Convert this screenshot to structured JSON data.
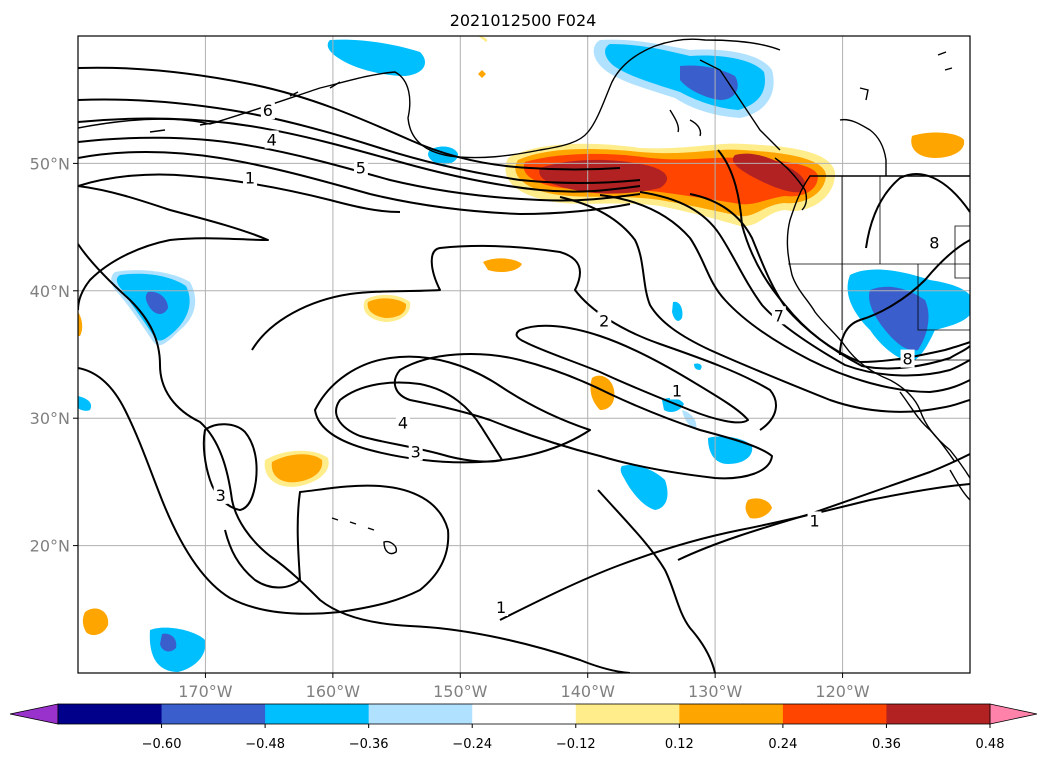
{
  "title": "2021012500 F024",
  "map": {
    "lon_range": [
      -180,
      -110
    ],
    "lat_range": [
      10,
      60
    ],
    "lon_ticks": [
      {
        "lon": -170,
        "label": "170°W"
      },
      {
        "lon": -160,
        "label": "160°W"
      },
      {
        "lon": -150,
        "label": "150°W"
      },
      {
        "lon": -140,
        "label": "140°W"
      },
      {
        "lon": -130,
        "label": "130°W"
      },
      {
        "lon": -120,
        "label": "120°W"
      }
    ],
    "lat_ticks": [
      {
        "lat": 20,
        "label": "20°N"
      },
      {
        "lat": 30,
        "label": "30°N"
      },
      {
        "lat": 40,
        "label": "40°N"
      },
      {
        "lat": 50,
        "label": "50°N"
      }
    ],
    "gridlines": true
  },
  "contour_labels": [
    {
      "text": "6",
      "lon": -165.1,
      "lat": 54.1
    },
    {
      "text": "4",
      "lon": -164.8,
      "lat": 51.8
    },
    {
      "text": "5",
      "lon": -157.8,
      "lat": 49.6
    },
    {
      "text": "1",
      "lon": -166.5,
      "lat": 48.8
    },
    {
      "text": "2",
      "lon": -138.7,
      "lat": 37.6
    },
    {
      "text": "7",
      "lon": -125.0,
      "lat": 38.0
    },
    {
      "text": "8",
      "lon": -112.8,
      "lat": 43.7
    },
    {
      "text": "8",
      "lon": -114.9,
      "lat": 34.6
    },
    {
      "text": "1",
      "lon": -133.0,
      "lat": 32.1
    },
    {
      "text": "4",
      "lon": -154.5,
      "lat": 29.6
    },
    {
      "text": "3",
      "lon": -153.5,
      "lat": 27.3
    },
    {
      "text": "3",
      "lon": -168.8,
      "lat": 23.9
    },
    {
      "text": "1",
      "lon": -146.8,
      "lat": 15.1
    },
    {
      "text": "1",
      "lon": -122.2,
      "lat": 21.9
    }
  ],
  "colorbar": {
    "ticks": [
      "−0.60",
      "−0.48",
      "−0.36",
      "−0.24",
      "−0.12",
      "0.12",
      "0.24",
      "0.36",
      "0.48",
      "0.60"
    ],
    "colors": [
      "#9932cc",
      "#00008b",
      "#3a5fcd",
      "#00bfff",
      "#b0e2ff",
      "#ffffff",
      "#ffec8b",
      "#ffa500",
      "#ff4500",
      "#b22222",
      "#ff82ab"
    ]
  },
  "shading_colors": {
    "light_blue": "#b0e2ff",
    "blue": "#00bfff",
    "dark_blue": "#3a5fcd",
    "yellow": "#ffec8b",
    "orange": "#ffa500",
    "red_orange": "#ff4500",
    "dark_red": "#b22222"
  }
}
